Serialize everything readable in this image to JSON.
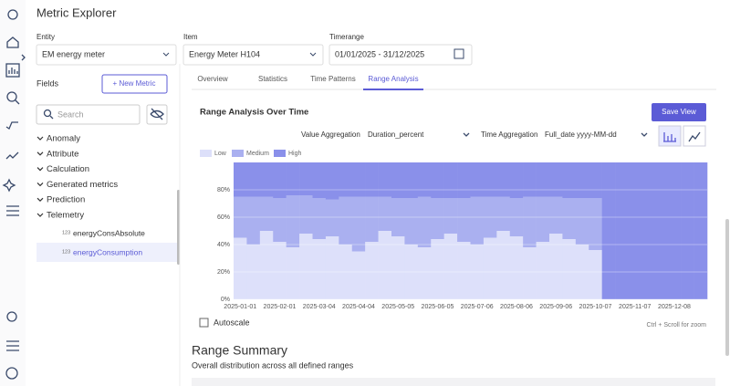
{
  "app": {
    "title": "Metric Explorer"
  },
  "filters": {
    "entity": {
      "label": "Entity",
      "value": "EM energy meter"
    },
    "item": {
      "label": "Item",
      "value": "Energy Meter H104"
    },
    "timerange": {
      "label": "Timerange",
      "value": "01/01/2025 - 31/12/2025"
    }
  },
  "fields": {
    "title": "Fields",
    "new_metric": "+ New Metric",
    "search_placeholder": "Search",
    "groups": [
      "Anomaly",
      "Attribute",
      "Calculation",
      "Generated metrics",
      "Prediction",
      "Telemetry"
    ],
    "child_type": "123",
    "children": [
      "energyConsAbsolute",
      "energyConsumption"
    ]
  },
  "tabs": [
    "Overview",
    "Statistics",
    "Time Patterns",
    "Range Analysis"
  ],
  "card": {
    "title": "Range Analysis Over Time",
    "save": "Save View",
    "value_aggregation": {
      "label": "Value Aggregation",
      "value": "Duration_percent"
    },
    "time_aggregation": {
      "label": "Time Aggregation",
      "value": "Full_date yyyy-MM-dd"
    },
    "autoscale": "Autoscale",
    "zoom_hint": "Ctrl + Scroll for zoom"
  },
  "chart_data": {
    "type": "stacked_bar",
    "categories": [
      "2025-01-01",
      null,
      null,
      "2025-02-01",
      null,
      null,
      "2025-03-04",
      null,
      null,
      "2025-04-04",
      null,
      null,
      "2025-05-05",
      null,
      null,
      "2025-06-05",
      null,
      null,
      "2025-07-06",
      null,
      null,
      "2025-08-06",
      null,
      null,
      "2025-09-06",
      null,
      null,
      "2025-10-07",
      null,
      null,
      "2025-11-07",
      null,
      null,
      "2025-12-08",
      null,
      null
    ],
    "series": [
      {
        "name": "Low",
        "color": "#dde0fa",
        "values": [
          45,
          40,
          50,
          42,
          38,
          48,
          44,
          46,
          40,
          35,
          42,
          50,
          46,
          40,
          38,
          44,
          48,
          42,
          40,
          45,
          50,
          46,
          38,
          42,
          48,
          44,
          40,
          36,
          0,
          0,
          0,
          0,
          0,
          0,
          0,
          0
        ]
      },
      {
        "name": "Medium",
        "color": "#aab0f0",
        "values": [
          30,
          35,
          25,
          32,
          38,
          28,
          30,
          27,
          35,
          40,
          33,
          25,
          28,
          34,
          37,
          30,
          26,
          32,
          35,
          30,
          25,
          28,
          37,
          33,
          27,
          30,
          34,
          38,
          0,
          0,
          0,
          0,
          0,
          0,
          0,
          0
        ]
      },
      {
        "name": "High",
        "color": "#8a90ea",
        "values": [
          25,
          25,
          25,
          26,
          24,
          24,
          26,
          27,
          25,
          25,
          25,
          25,
          26,
          26,
          25,
          26,
          26,
          26,
          25,
          25,
          25,
          26,
          25,
          25,
          25,
          26,
          26,
          26,
          100,
          100,
          100,
          100,
          100,
          100,
          100,
          100
        ]
      }
    ],
    "ylim": [
      0,
      100
    ],
    "yticks": [
      {
        "value": 0,
        "label": "0%"
      },
      {
        "value": 20,
        "label": "20%"
      },
      {
        "value": 40,
        "label": "40%"
      },
      {
        "value": 60,
        "label": "60%"
      },
      {
        "value": 80,
        "label": "80%"
      }
    ]
  },
  "summary": {
    "title": "Range Summary",
    "subtitle": "Overall distribution across all defined ranges"
  }
}
